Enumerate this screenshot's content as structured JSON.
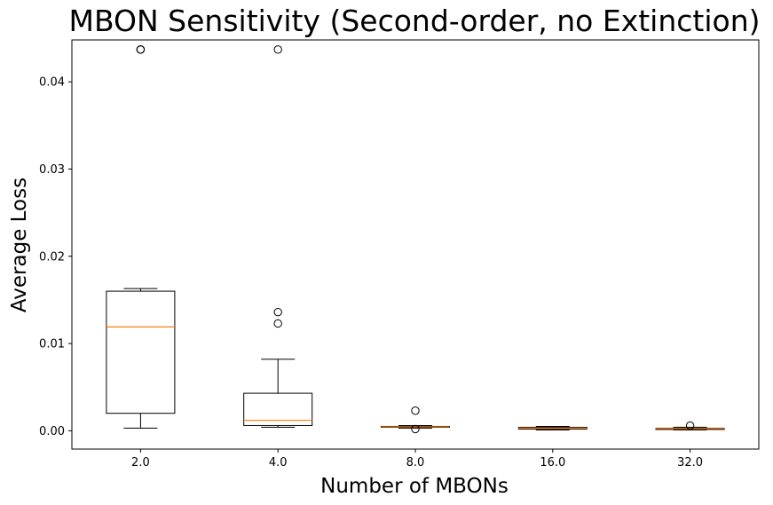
{
  "chart_data": {
    "type": "box",
    "title": "MBON Sensitivity (Second-order, no Extinction)",
    "xlabel": "Number of MBONs",
    "ylabel": "Average Loss",
    "categories": [
      "2.0",
      "4.0",
      "8.0",
      "16.0",
      "32.0"
    ],
    "yticks": [
      "0.00",
      "0.01",
      "0.02",
      "0.03",
      "0.04"
    ],
    "ylim": [
      -0.0021,
      0.0448
    ],
    "grid": false,
    "boxes": [
      {
        "category": "2.0",
        "whisker_low": 0.0003,
        "q1": 0.002,
        "median": 0.0119,
        "q3": 0.016,
        "whisker_high": 0.0163,
        "outliers": [
          0.0437,
          0.0437,
          0.0437
        ]
      },
      {
        "category": "4.0",
        "whisker_low": 0.0004,
        "q1": 0.0006,
        "median": 0.0012,
        "q3": 0.0043,
        "whisker_high": 0.0082,
        "outliers": [
          0.0437,
          0.0136,
          0.0123
        ]
      },
      {
        "category": "8.0",
        "whisker_low": 0.0003,
        "q1": 0.0004,
        "median": 0.00045,
        "q3": 0.0005,
        "whisker_high": 0.0006,
        "outliers": [
          0.0023,
          0.0002
        ]
      },
      {
        "category": "16.0",
        "whisker_low": 0.0001,
        "q1": 0.0002,
        "median": 0.0003,
        "q3": 0.0004,
        "whisker_high": 0.0005,
        "outliers": []
      },
      {
        "category": "32.0",
        "whisker_low": 0.0001,
        "q1": 0.00015,
        "median": 0.00025,
        "q3": 0.0003,
        "whisker_high": 0.0004,
        "outliers": [
          0.0006
        ]
      }
    ],
    "colors": {
      "box": "#000000",
      "median": "#ff7f0e",
      "background": "#ffffff"
    }
  }
}
